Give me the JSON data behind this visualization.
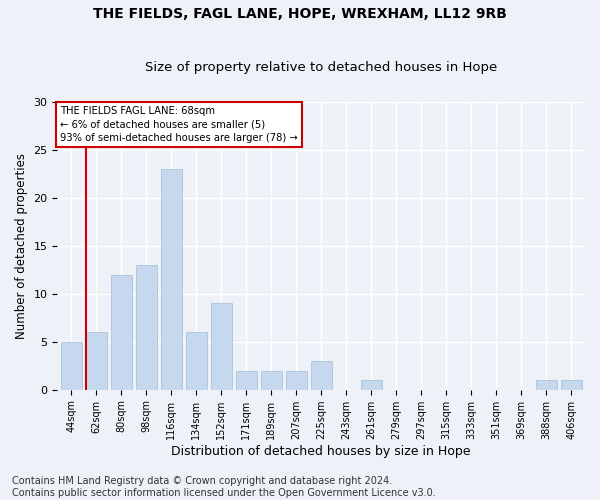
{
  "title1": "THE FIELDS, FAGL LANE, HOPE, WREXHAM, LL12 9RB",
  "title2": "Size of property relative to detached houses in Hope",
  "xlabel": "Distribution of detached houses by size in Hope",
  "ylabel": "Number of detached properties",
  "categories": [
    "44sqm",
    "62sqm",
    "80sqm",
    "98sqm",
    "116sqm",
    "134sqm",
    "152sqm",
    "171sqm",
    "189sqm",
    "207sqm",
    "225sqm",
    "243sqm",
    "261sqm",
    "279sqm",
    "297sqm",
    "315sqm",
    "333sqm",
    "351sqm",
    "369sqm",
    "388sqm",
    "406sqm"
  ],
  "values": [
    5,
    6,
    12,
    13,
    23,
    6,
    9,
    2,
    2,
    2,
    3,
    0,
    1,
    0,
    0,
    0,
    0,
    0,
    0,
    1,
    1
  ],
  "bar_color": "#c5d8ed",
  "bar_edge_color": "#a0bcd8",
  "vline_color": "#cc0000",
  "annotation_text": "THE FIELDS FAGL LANE: 68sqm\n← 6% of detached houses are smaller (5)\n93% of semi-detached houses are larger (78) →",
  "annotation_box_color": "#ffffff",
  "annotation_box_edge": "#cc0000",
  "ylim": [
    0,
    30
  ],
  "yticks": [
    0,
    5,
    10,
    15,
    20,
    25,
    30
  ],
  "footer": "Contains HM Land Registry data © Crown copyright and database right 2024.\nContains public sector information licensed under the Open Government Licence v3.0.",
  "bg_color": "#eef2f8",
  "grid_color": "#ffffff",
  "title_fontsize": 10,
  "subtitle_fontsize": 9.5,
  "axis_label_fontsize": 9,
  "xlabel_fontsize": 9,
  "tick_fontsize": 7,
  "footer_fontsize": 7,
  "ylabel_fontsize": 8.5
}
